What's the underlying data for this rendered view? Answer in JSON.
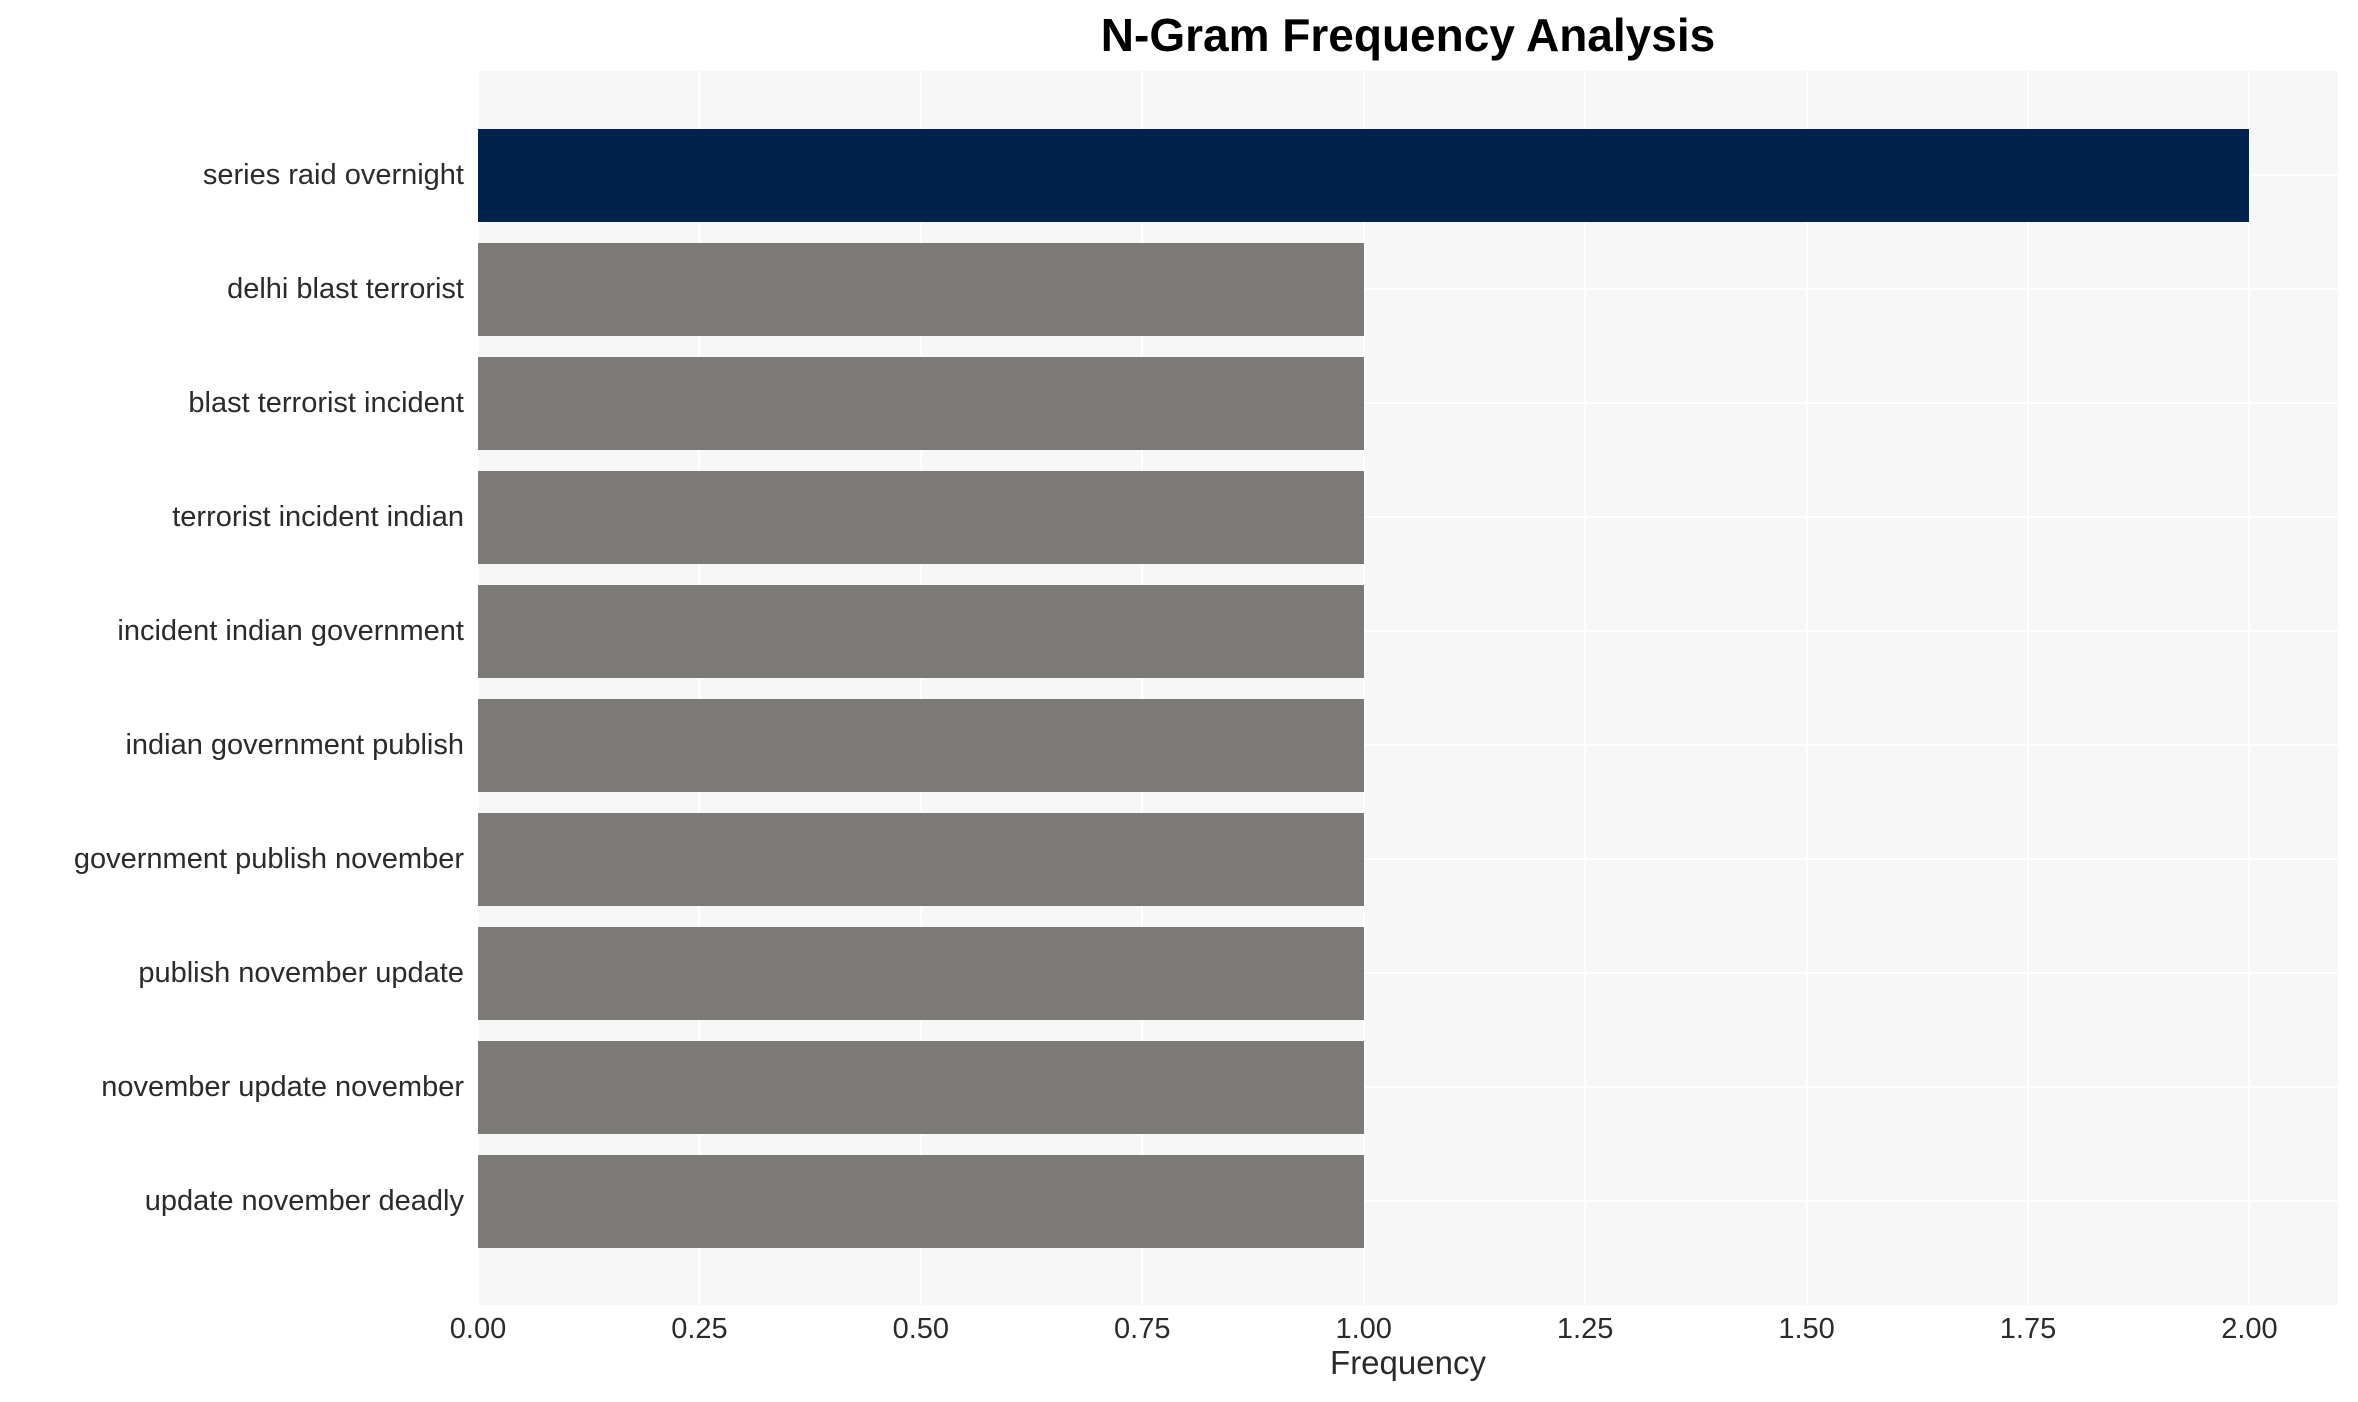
{
  "chart_data": {
    "type": "bar",
    "orientation": "horizontal",
    "title": "N-Gram Frequency Analysis",
    "xlabel": "Frequency",
    "ylabel": "",
    "categories": [
      "series raid overnight",
      "delhi blast terrorist",
      "blast terrorist incident",
      "terrorist incident indian",
      "incident indian government",
      "indian government publish",
      "government publish november",
      "publish november update",
      "november update november",
      "update november deadly"
    ],
    "values": [
      2,
      1,
      1,
      1,
      1,
      1,
      1,
      1,
      1,
      1
    ],
    "bar_colors": [
      "#00234d",
      "#7b7a76",
      "#7b7a76",
      "#7b7a76",
      "#7b7a76",
      "#7b7a76",
      "#7b7a76",
      "#7b7a76",
      "#7b7a76",
      "#7b7a76"
    ],
    "x_ticks": [
      "0.00",
      "0.25",
      "0.50",
      "0.75",
      "1.00",
      "1.25",
      "1.50",
      "1.75",
      "2.00"
    ],
    "x_tick_values": [
      0,
      0.25,
      0.5,
      0.75,
      1.0,
      1.25,
      1.5,
      1.75,
      2.0
    ],
    "xlim": [
      0,
      2.1
    ],
    "grid": true,
    "legend": false,
    "colors": {
      "highlight_bar": "#00234d",
      "default_bar": "#7b7a76",
      "plot_background": "#f7f7f7",
      "gridline": "#ffffff",
      "tick_text": "#2b2b2b",
      "title_text": "#000000"
    }
  }
}
